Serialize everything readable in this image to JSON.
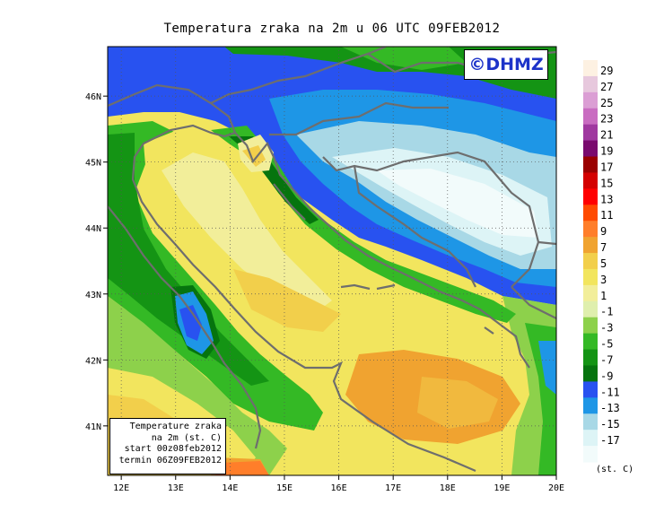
{
  "title": "Temperatura zraka na 2m u 06 UTC 09FEB2012",
  "logo_text": "©DHMZ",
  "info_box": {
    "line1": "Temperature zraka",
    "line2": "na 2m (st. C)",
    "line3": "start 00z08feb2012",
    "line4": "termin 06Z09FEB2012"
  },
  "legend": {
    "units": "(st. C)",
    "levels": [
      "29",
      "27",
      "25",
      "23",
      "21",
      "19",
      "17",
      "15",
      "13",
      "11",
      "9",
      "7",
      "5",
      "3",
      "1",
      "-1",
      "-3",
      "-5",
      "-7",
      "-9",
      "-11",
      "-13",
      "-15",
      "-17"
    ],
    "colors": [
      "#fdf1e2",
      "#e7c8dd",
      "#db9ed4",
      "#c96cc1",
      "#a038a0",
      "#7a0a6e",
      "#9a0000",
      "#d40000",
      "#ff0000",
      "#ff4a00",
      "#ff7e2a",
      "#f0a330",
      "#f2cf4b",
      "#f2e55e",
      "#f2ee9a",
      "#dfefad",
      "#8dd14b",
      "#34b925",
      "#149414",
      "#06740e",
      "#2852f0",
      "#1e96e6",
      "#a8d8e6",
      "#ddf4f6",
      "#f2fbfb"
    ]
  },
  "axes": {
    "x_ticks": [
      "12E",
      "13E",
      "14E",
      "15E",
      "16E",
      "17E",
      "18E",
      "19E",
      "20E"
    ],
    "y_ticks": [
      "46N",
      "45N",
      "44N",
      "43N",
      "42N",
      "41N"
    ],
    "lon_range": [
      11.75,
      20
    ],
    "lat_range": [
      40.25,
      46.75
    ]
  },
  "colors": {
    "coast": "#6e6e6e",
    "frame": "#000000",
    "grid": "#555555"
  }
}
